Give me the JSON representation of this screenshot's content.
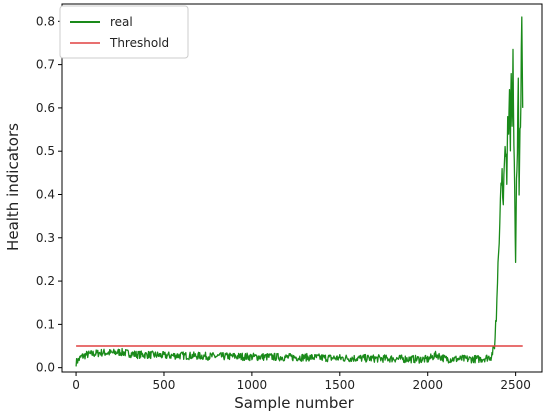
{
  "chart_data": {
    "type": "line",
    "title": "",
    "xlabel": "Sample number",
    "ylabel": "Health indicators",
    "xlim": [
      -80,
      2650
    ],
    "ylim": [
      -0.01,
      0.84
    ],
    "xticks": [
      0,
      500,
      1000,
      1500,
      2000,
      2500
    ],
    "yticks": [
      0.0,
      0.1,
      0.2,
      0.3,
      0.4,
      0.5,
      0.6,
      0.7,
      0.8
    ],
    "xtick_labels": [
      "0",
      "500",
      "1000",
      "1500",
      "2000",
      "2500"
    ],
    "ytick_labels": [
      "0.0",
      "0.1",
      "0.2",
      "0.3",
      "0.4",
      "0.5",
      "0.6",
      "0.7",
      "0.8"
    ],
    "grid": false,
    "legend_position": "top-left",
    "series": [
      {
        "name": "real",
        "color": "#1a8a1a",
        "noise": true,
        "x": [
          0,
          30,
          60,
          100,
          150,
          200,
          250,
          300,
          350,
          400,
          500,
          600,
          700,
          800,
          900,
          1000,
          1100,
          1200,
          1300,
          1400,
          1500,
          1600,
          1700,
          1800,
          1900,
          2000,
          2050,
          2100,
          2200,
          2300,
          2360,
          2380,
          2390,
          2400,
          2410,
          2420,
          2430,
          2440,
          2450,
          2455,
          2460,
          2465,
          2470,
          2475,
          2480,
          2485,
          2490,
          2495,
          2500,
          2505,
          2510,
          2515,
          2520,
          2525,
          2530,
          2535,
          2540
        ],
        "y": [
          0.012,
          0.025,
          0.03,
          0.032,
          0.035,
          0.034,
          0.036,
          0.033,
          0.03,
          0.03,
          0.028,
          0.028,
          0.027,
          0.026,
          0.026,
          0.025,
          0.025,
          0.024,
          0.024,
          0.023,
          0.022,
          0.022,
          0.021,
          0.021,
          0.02,
          0.019,
          0.03,
          0.02,
          0.02,
          0.02,
          0.025,
          0.05,
          0.12,
          0.25,
          0.35,
          0.45,
          0.4,
          0.5,
          0.45,
          0.6,
          0.55,
          0.67,
          0.5,
          0.7,
          0.55,
          0.71,
          0.5,
          0.4,
          0.25,
          0.45,
          0.5,
          0.66,
          0.38,
          0.55,
          0.62,
          0.8,
          0.6
        ]
      },
      {
        "name": "Threshold",
        "color": "#e04040",
        "noise": false,
        "x": [
          0,
          2540
        ],
        "y": [
          0.05,
          0.05
        ]
      }
    ]
  }
}
